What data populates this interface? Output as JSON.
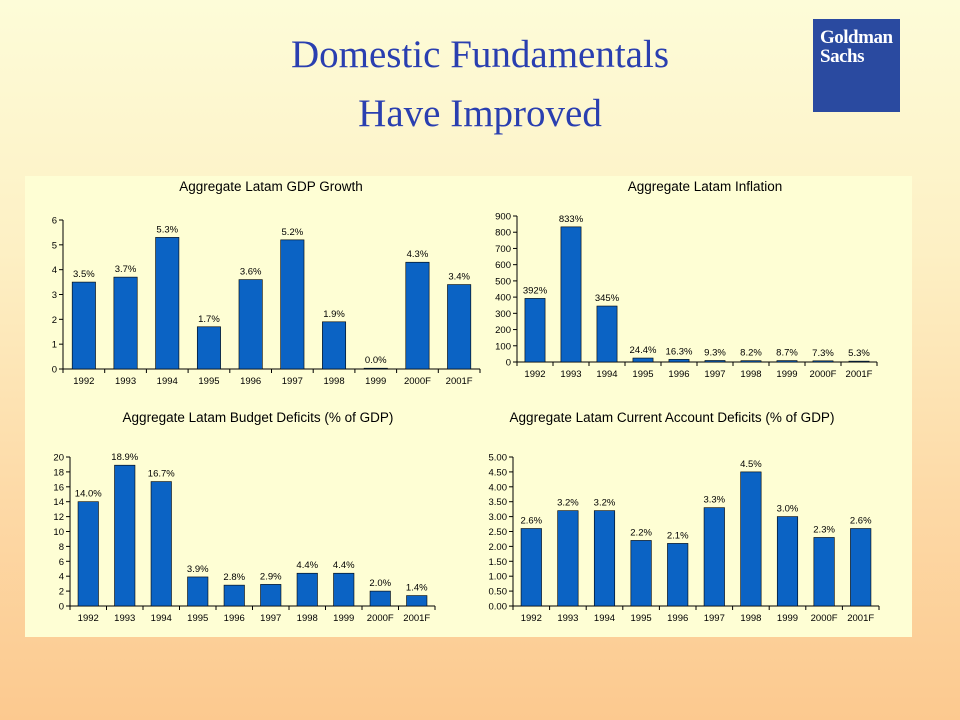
{
  "slide": {
    "title_line1": "Domestic Fundamentals",
    "title_line2": "Have Improved"
  },
  "logo": {
    "line1": "Goldman",
    "line2": "Sachs",
    "bg_color": "#2a4aa0"
  },
  "colors": {
    "bar": "#0b63c4",
    "title": "#2a3fb0"
  },
  "chart_data": [
    {
      "type": "bar",
      "title": "Aggregate Latam GDP Growth",
      "categories": [
        "1992",
        "1993",
        "1994",
        "1995",
        "1996",
        "1997",
        "1998",
        "1999",
        "2000F",
        "2001F"
      ],
      "values": [
        3.5,
        3.7,
        5.3,
        1.7,
        3.6,
        5.2,
        1.9,
        0.0,
        4.3,
        3.4
      ],
      "labels": [
        "3.5%",
        "3.7%",
        "5.3%",
        "1.7%",
        "3.6%",
        "5.2%",
        "1.9%",
        "0.0%",
        "4.3%",
        "3.4%"
      ],
      "yticks": [
        "0",
        "1",
        "2",
        "3",
        "4",
        "5",
        "6"
      ],
      "ylim": [
        0,
        6
      ]
    },
    {
      "type": "bar",
      "title": "Aggregate Latam Inflation",
      "categories": [
        "1992",
        "1993",
        "1994",
        "1995",
        "1996",
        "1997",
        "1998",
        "1999",
        "2000F",
        "2001F"
      ],
      "values": [
        392,
        833,
        345,
        24.4,
        16.3,
        9.3,
        8.2,
        8.7,
        7.3,
        5.3
      ],
      "labels": [
        "392%",
        "833%",
        "345%",
        "24.4%",
        "16.3%",
        "9.3%",
        "8.2%",
        "8.7%",
        "7.3%",
        "5.3%"
      ],
      "yticks": [
        "0",
        "100",
        "200",
        "300",
        "400",
        "500",
        "600",
        "700",
        "800",
        "900"
      ],
      "ylim": [
        0,
        900
      ]
    },
    {
      "type": "bar",
      "title": "Aggregate Latam Budget Deficits (% of GDP)",
      "categories": [
        "1992",
        "1993",
        "1994",
        "1995",
        "1996",
        "1997",
        "1998",
        "1999",
        "2000F",
        "2001F"
      ],
      "values": [
        14.0,
        18.9,
        16.7,
        3.9,
        2.8,
        2.9,
        4.4,
        4.4,
        2.0,
        1.4
      ],
      "labels": [
        "14.0%",
        "18.9%",
        "16.7%",
        "3.9%",
        "2.8%",
        "2.9%",
        "4.4%",
        "4.4%",
        "2.0%",
        "1.4%"
      ],
      "yticks": [
        "0",
        "2",
        "4",
        "6",
        "8",
        "10",
        "12",
        "14",
        "16",
        "18",
        "20"
      ],
      "ylim": [
        0,
        20
      ]
    },
    {
      "type": "bar",
      "title": "Aggregate Latam Current Account Deficits (% of GDP)",
      "categories": [
        "1992",
        "1993",
        "1994",
        "1995",
        "1996",
        "1997",
        "1998",
        "1999",
        "2000F",
        "2001F"
      ],
      "values": [
        2.6,
        3.2,
        3.2,
        2.2,
        2.1,
        3.3,
        4.5,
        3.0,
        2.3,
        2.6
      ],
      "labels": [
        "2.6%",
        "3.2%",
        "3.2%",
        "2.2%",
        "2.1%",
        "3.3%",
        "4.5%",
        "3.0%",
        "2.3%",
        "2.6%"
      ],
      "yticks": [
        "0.00",
        "0.50",
        "1.00",
        "1.50",
        "2.00",
        "2.50",
        "3.00",
        "3.50",
        "4.00",
        "4.50",
        "5.00"
      ],
      "ylim": [
        0,
        5
      ]
    }
  ]
}
